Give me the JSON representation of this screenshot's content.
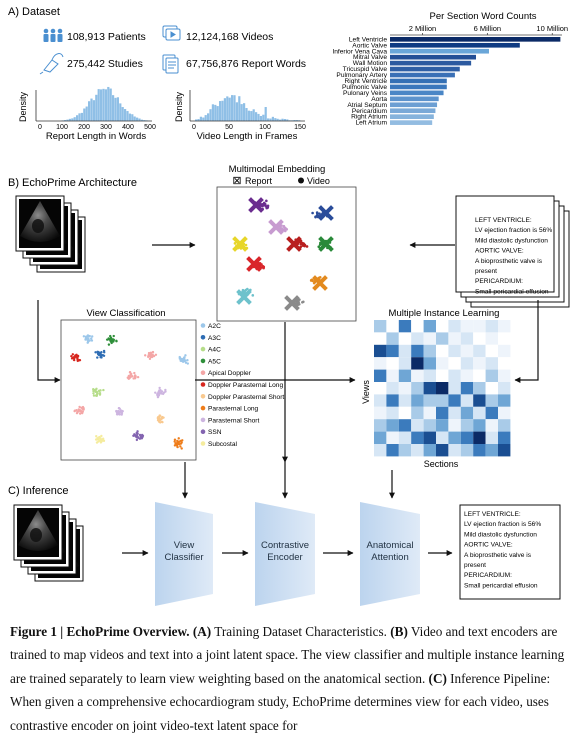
{
  "section_a": {
    "label": "A) Dataset",
    "stats": [
      {
        "icon": "patients-icon",
        "value": "108,913 Patients"
      },
      {
        "icon": "videos-icon",
        "value": "12,124,168 Videos"
      },
      {
        "icon": "ultrasound-probe-icon",
        "value": "275,442 Studies"
      },
      {
        "icon": "report-document-icon",
        "value": "67,756,876 Report Words"
      }
    ]
  },
  "hist_report": {
    "ylabel": "Density",
    "xlabel": "Report Length in Words",
    "ticks": [
      "0",
      "100",
      "200",
      "300",
      "400",
      "500"
    ]
  },
  "hist_video": {
    "ylabel": "Density",
    "xlabel": "Video Length in Frames",
    "ticks": [
      "0",
      "50",
      "100",
      "150"
    ]
  },
  "chart_data": {
    "type": "bar",
    "title": "Per Section Word Counts",
    "xlim": [
      0,
      10600000
    ],
    "x_ticks": [
      {
        "value": 2000000,
        "label": "2 Million"
      },
      {
        "value": 6000000,
        "label": "6 Million"
      },
      {
        "value": 10000000,
        "label": "10 Million"
      }
    ],
    "categories": [
      "Left Ventricle",
      "Aortic Valve",
      "Inferior Vena Cava",
      "Mitral Valve",
      "Wall Motion",
      "Tricuspid Valve",
      "Pulmonary Artery",
      "Right Ventricle",
      "Pulmonic Valve",
      "Pulonary Veins",
      "Aorta",
      "Atrial Septum",
      "Pericardium",
      "Right Atrium",
      "Left Atrium"
    ],
    "values": [
      10500000,
      8000000,
      6100000,
      5300000,
      5000000,
      4300000,
      4000000,
      3500000,
      3500000,
      3300000,
      3000000,
      2900000,
      2800000,
      2700000,
      2600000
    ],
    "colors": [
      "#0b2a66",
      "#0f3b82",
      "#6aa6d8",
      "#234f96",
      "#2c5aa0",
      "#2f5fa5",
      "#3a70b6",
      "#3470b5",
      "#3a77bc",
      "#4a86c6",
      "#5c93cd",
      "#6c9fd3",
      "#7aa9d7",
      "#86b3dc",
      "#93bce1"
    ]
  },
  "section_b": {
    "label": "B) EchoPrime Architecture",
    "embedding": {
      "title": "Multimodal Embedding",
      "legend_report": "Report",
      "legend_video": "Video"
    },
    "view_classification": {
      "title": "View Classification",
      "legend": [
        {
          "label": "A2C",
          "color": "#9cc7ea"
        },
        {
          "label": "A3C",
          "color": "#2e6db4"
        },
        {
          "label": "A4C",
          "color": "#b6dd8a"
        },
        {
          "label": "A5C",
          "color": "#2f8f3a"
        },
        {
          "label": "Apical Doppler",
          "color": "#f4a6a6"
        },
        {
          "label": "Doppler Parasternal Long",
          "color": "#d7261e"
        },
        {
          "label": "Doppler Parasternal Short",
          "color": "#f9c98f"
        },
        {
          "label": "Parasternal Long",
          "color": "#ef7d1a"
        },
        {
          "label": "Parasternal Short",
          "color": "#cdb5e0"
        },
        {
          "label": "SSN",
          "color": "#8364b0"
        },
        {
          "label": "Subcostal",
          "color": "#f5ec9e"
        }
      ]
    },
    "mil": {
      "title": "Multiple Instance Learning",
      "ylabel": "Views",
      "xlabel": "Sections"
    },
    "report_lines": [
      "LEFT VENTRICLE:",
      "LV ejection fraction is 56%",
      "Mild diastolic dysfunction",
      "AORTIC VALVE:",
      "A bioprosthetic valve is",
      "present",
      "PERICARDIUM:",
      "Small pericardial effusion"
    ]
  },
  "section_c": {
    "label": "C) Inference",
    "blocks": [
      [
        "View",
        "Classifier"
      ],
      [
        "Contrastive",
        "Encoder"
      ],
      [
        "Anatomical",
        "Attention"
      ]
    ],
    "report_lines": [
      "LEFT VENTRICLE:",
      "LV ejection fraction is 56%",
      "Mild diastolic dysfunction",
      "AORTIC VALVE:",
      "A bioprosthetic valve is",
      "present",
      "PERICARDIUM:",
      "Small pericardial effusion"
    ]
  },
  "caption": {
    "fig_label": "Figure 1 | EchoPrime Overview.",
    "a_label": "(A)",
    "a_text": " Training Dataset Characteristics. ",
    "b_label": "(B)",
    "b_text": " Video and text encoders are trained to map videos and text into a joint latent space. The view classifier and multiple instance learning are trained separately to learn view weighting based on the anatomical section. ",
    "c_label": "(C)",
    "c_text": " Inference Pipeline: When given a comprehensive echocardiogram study, EchoPrime determines view for each video, uses contrastive encoder on joint video-text latent space for"
  }
}
